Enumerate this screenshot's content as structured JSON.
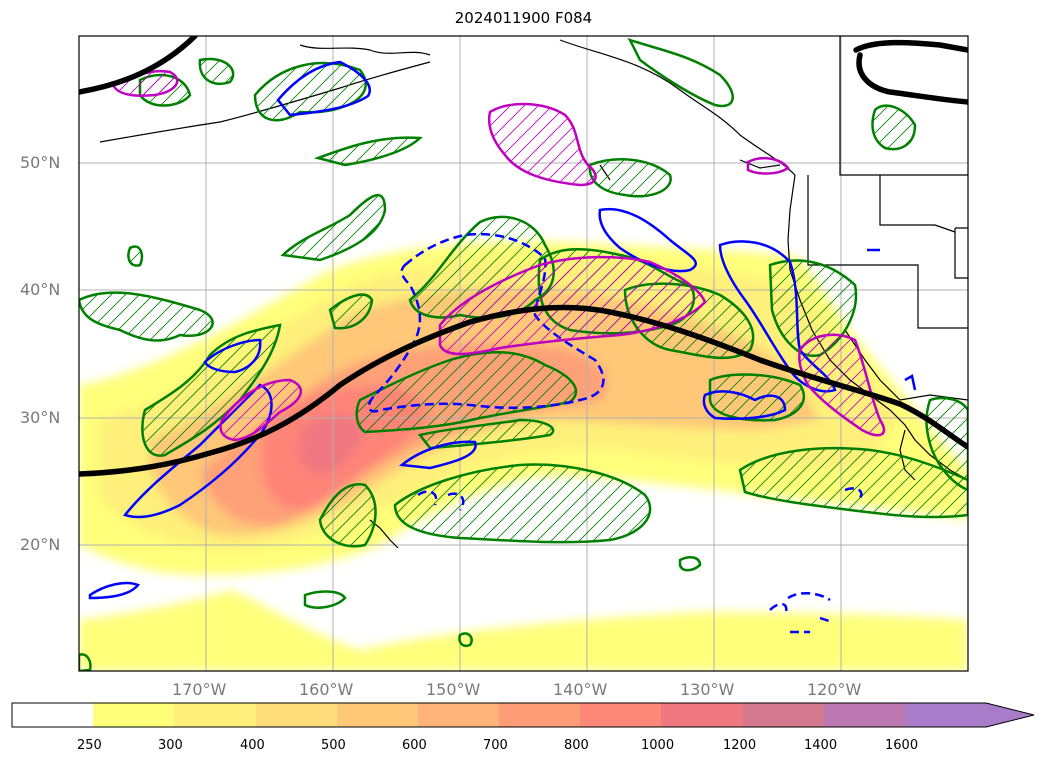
{
  "title": "2024011900 F084",
  "lat_labels": [
    "50°N",
    "40°N",
    "30°N",
    "20°N"
  ],
  "lon_labels": [
    "170°W",
    "160°W",
    "150°W",
    "140°W",
    "130°W",
    "120°W"
  ],
  "colorbar": {
    "ticks": [
      "250",
      "300",
      "400",
      "500",
      "600",
      "700",
      "800",
      "1000",
      "1200",
      "1400",
      "1600"
    ],
    "colors": [
      "#ffffff",
      "#ffff7a",
      "#fef07a",
      "#fedd7a",
      "#fec878",
      "#feb478",
      "#fe9c78",
      "#fe8878",
      "#f07880",
      "#d47890",
      "#bc78b0",
      "#a87cc8"
    ]
  },
  "contour_colors": {
    "jet": "#000000",
    "green": "#008000",
    "blue": "#0000ff",
    "magenta": "#c000c0"
  }
}
